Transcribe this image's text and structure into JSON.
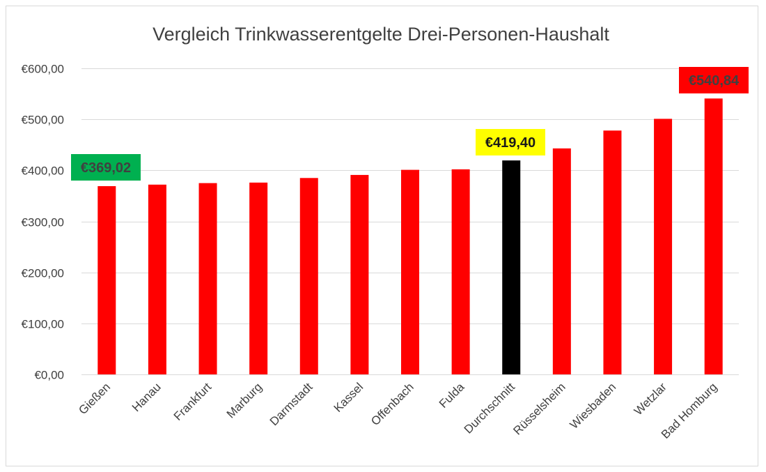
{
  "chart_data": {
    "type": "bar",
    "title": "Vergleich Trinkwasserentgelte Drei-Personen-Haushalt",
    "xlabel": "",
    "ylabel": "",
    "ylim": [
      0,
      600
    ],
    "yticks": [
      0,
      100,
      200,
      300,
      400,
      500,
      600
    ],
    "ytick_labels": [
      "€0,00",
      "€100,00",
      "€200,00",
      "€300,00",
      "€400,00",
      "€500,00",
      "€600,00"
    ],
    "grid": true,
    "legend": "none",
    "categories": [
      "Gießen",
      "Hanau",
      "Frankfurt",
      "Marburg",
      "Darmstadt",
      "Kassel",
      "Offenbach",
      "Fulda",
      "Durchschnitt",
      "Rüsselsheim",
      "Wiesbaden",
      "Wetzlar",
      "Bad Homburg"
    ],
    "values": [
      369.02,
      372,
      375,
      376,
      385,
      391,
      401,
      402,
      419.4,
      443,
      478,
      501,
      540.84
    ],
    "bar_colors": [
      "#ff0000",
      "#ff0000",
      "#ff0000",
      "#ff0000",
      "#ff0000",
      "#ff0000",
      "#ff0000",
      "#ff0000",
      "#000000",
      "#ff0000",
      "#ff0000",
      "#ff0000",
      "#ff0000"
    ],
    "data_labels": [
      {
        "category": "Gießen",
        "text": "€369,02",
        "background": "#00b050",
        "color": "#404040"
      },
      {
        "category": "Durchschnitt",
        "text": "€419,40",
        "background": "#ffff00",
        "color": "#1a1a1a"
      },
      {
        "category": "Bad Homburg",
        "text": "€540,84",
        "background": "#ff0000",
        "color": "#404040"
      }
    ]
  }
}
